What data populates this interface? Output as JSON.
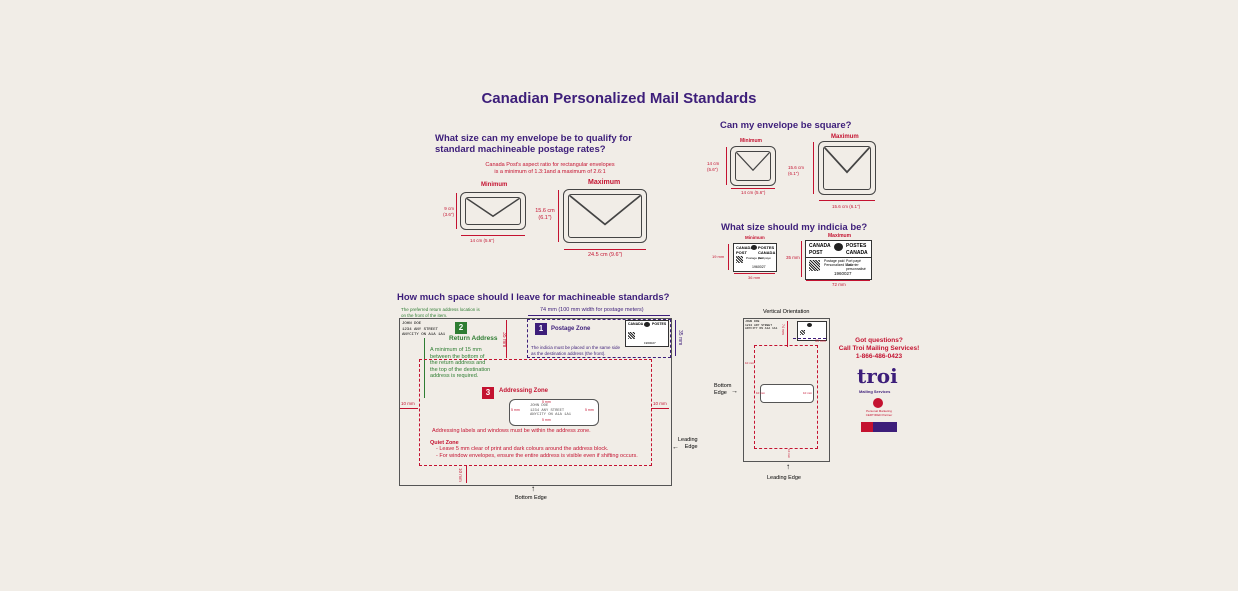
{
  "title": "Canadian Personalized Mail Standards",
  "size_section": {
    "heading_1": "What size can my envelope be to qualify for",
    "heading_2": "standard machineable postage rates?",
    "note_1": "Canada Post's aspect ratio for rectangular envelopes",
    "note_2": "is a minimum of 1.3:1and a maximum of 2.6:1",
    "min_label": "Minimum",
    "max_label": "Maximum",
    "min_height": "9 cm (3.6\")",
    "min_width": "14 cm (5.6\")",
    "max_height_1": "15.6 cm",
    "max_height_2": "(6.1\")",
    "max_width": "24.5 cm (9.6\")"
  },
  "square_section": {
    "heading": "Can my envelope be square?",
    "min_label": "Minimum",
    "max_label": "Maximum",
    "min_height": "14 cm (5.6\")",
    "min_width": "14 cm (5.6\")",
    "max_height": "15.6 cm (6.1\")",
    "max_width": "15.6 cm (6.1\")"
  },
  "indicia_section": {
    "heading": "What size should my indicia be?",
    "min_label": "Minimum",
    "max_label": "Maximum",
    "min_height": "19 mm",
    "min_width": "36 mm",
    "max_height": "35 mm",
    "max_width": "72 mm",
    "canada": "CANADA",
    "postes": "POSTES",
    "post": "POST",
    "canada2": "CANADA",
    "postage_paid": "Postage paid",
    "port_paye": "Port payé",
    "personalized_mail": "Personalized Mail",
    "courrier_personnalise": "Courrier personnalisé",
    "number": "1960027"
  },
  "space_section": {
    "heading": "How much space should I leave for machineable standards?",
    "return_note_1": "The preferred return address location is",
    "return_note_2": "on the front of the item.",
    "return_address": [
      "JOHN DOE",
      "1234 ANY STREET",
      "ANYCITY ON A1A 1A1"
    ],
    "width_label": "74 mm (100 mm width for postage meters)",
    "zone1_num": "1",
    "zone1_title": "Postage Zone",
    "zone1_text_1": "The indicia must be placed on the same side",
    "zone1_text_2": "as the destination address (the front).",
    "zone2_num": "2",
    "zone2_title": "Return Address",
    "zone2_text": [
      "A minimum of 15 mm",
      "between the bottom of",
      "the return address and",
      "the top of the destination",
      "address is required."
    ],
    "zone3_num": "3",
    "zone3_title": "Addressing Zone",
    "zone3_text": "Addressing labels and windows must be within the address zone.",
    "quiet_title": "Quiet Zone",
    "quiet_1": "- Leave 5 mm clear of print and dark colours around the address block.",
    "quiet_2": "- For window envelopes, ensure the entire address is visible even if shifting occurs.",
    "dest_address": [
      "JOHN DOE",
      "1234 ANY STREET",
      "ANYCITY ON A1A 1A1"
    ],
    "mm35": "35 mm",
    "mm35b": "35 mm",
    "mm10_left": "10 mm",
    "mm10_right": "10 mm",
    "mm10_bottom": "10 mm",
    "mm5a": "5 mm",
    "mm5b": "5 mm",
    "mm5c": "5 mm",
    "mm5d": "5 mm",
    "leading_edge_1": "Leading",
    "leading_edge_2": "Edge",
    "bottom_edge": "Bottom Edge"
  },
  "vertical_section": {
    "title": "Vertical Orientation",
    "bottom_edge_1": "Bottom",
    "bottom_edge_2": "Edge",
    "leading_edge": "Leading Edge",
    "mm74": "74 mm",
    "mm35": "35 mm",
    "mm10a": "10 mm",
    "mm10b": "10 mm",
    "mm10c": "10 mm",
    "mm10d": "10 mm"
  },
  "contact": {
    "line1": "Got questions?",
    "line2": "Call Troi Mailing Services!",
    "phone": "1-866-486-0423",
    "brand": "troi",
    "brand_sub": "Mailing Services",
    "expert_1": "Personal Marketing",
    "expert_2": "CERTIFIED Partner"
  },
  "colors": {
    "purple": "#3d1e7a",
    "red": "#c41230",
    "green": "#2e7d32",
    "bg": "#f1ede7"
  }
}
